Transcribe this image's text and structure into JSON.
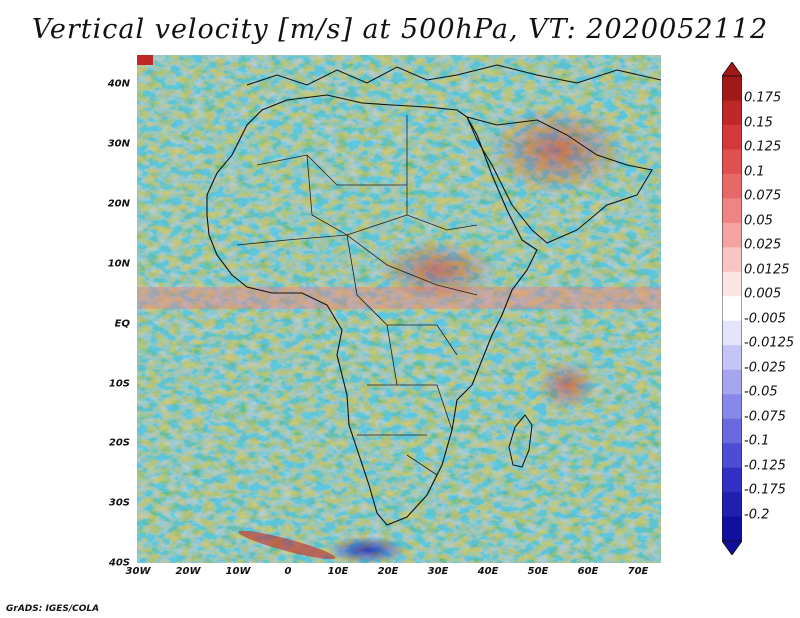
{
  "title": "Vertical velocity [m/s] at 500hPa, VT: 2020052112",
  "credit": "GrADS: IGES/COLA",
  "map": {
    "lat_ticks": [
      "40N",
      "30N",
      "20N",
      "10N",
      "EQ",
      "10S",
      "20S",
      "30S",
      "40S"
    ],
    "lon_ticks": [
      "30W",
      "20W",
      "10W",
      "0",
      "10E",
      "20E",
      "30E",
      "40E",
      "50E",
      "60E",
      "70E"
    ],
    "lat_range": [
      -40,
      45
    ],
    "lon_range": [
      -30,
      75
    ]
  },
  "colorbar": {
    "labels": [
      "0.175",
      "0.15",
      "0.125",
      "0.1",
      "0.075",
      "0.05",
      "0.025",
      "0.0125",
      "0.005",
      "-0.005",
      "-0.0125",
      "-0.025",
      "-0.05",
      "-0.075",
      "-0.1",
      "-0.125",
      "-0.175",
      "-0.2"
    ],
    "colors": [
      "#a01818",
      "#c02828",
      "#d43838",
      "#e05050",
      "#e86868",
      "#ee8484",
      "#f4a2a2",
      "#f8c4c4",
      "#fce4e4",
      "#ffffff",
      "#e4e4fc",
      "#c4c4f6",
      "#a6a6f0",
      "#8888ea",
      "#6a6ae0",
      "#4c4cd4",
      "#3030c4",
      "#2020b0",
      "#1010a0"
    ]
  }
}
